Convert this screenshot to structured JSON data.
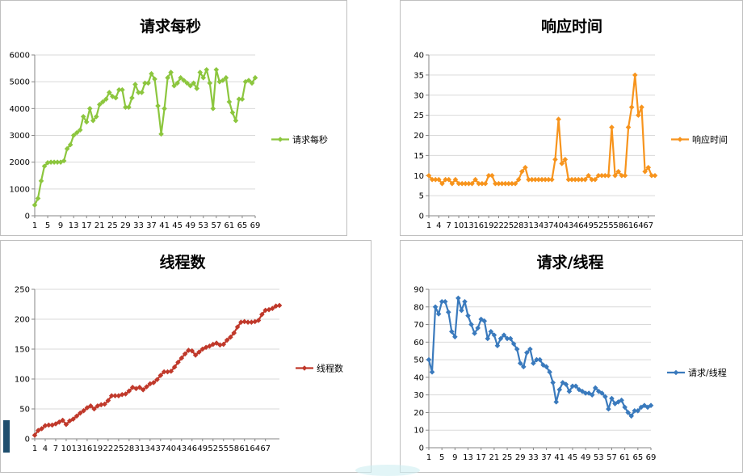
{
  "chart_data": [
    {
      "type": "line",
      "title": "请求每秒",
      "ylim": [
        0,
        6000
      ],
      "yticks": [
        0,
        1000,
        2000,
        3000,
        4000,
        5000,
        6000
      ],
      "xtick_labels": [
        "1",
        "5",
        "9",
        "13",
        "17",
        "21",
        "25",
        "29",
        "33",
        "37",
        "41",
        "45",
        "49",
        "53",
        "57",
        "61",
        "65",
        "69"
      ],
      "series": [
        {
          "name": "请求每秒",
          "color": "#8cc63e",
          "values": [
            400,
            650,
            1300,
            1850,
            1980,
            2000,
            2000,
            2000,
            2000,
            2050,
            2500,
            2650,
            3000,
            3100,
            3200,
            3700,
            3500,
            4000,
            3550,
            3700,
            4150,
            4250,
            4350,
            4600,
            4450,
            4400,
            4700,
            4700,
            4050,
            4050,
            4400,
            4900,
            4600,
            4600,
            4950,
            4950,
            5300,
            5100,
            4100,
            3050,
            4000,
            5150,
            5350,
            4850,
            4950,
            5150,
            5050,
            4950,
            4850,
            4950,
            4750,
            5350,
            5150,
            5450,
            4950,
            4000,
            5450,
            5000,
            5050,
            5150,
            4250,
            3850,
            3550,
            4350,
            4350,
            5000,
            5050,
            4950,
            5150
          ]
        }
      ]
    },
    {
      "type": "line",
      "title": "响应时间",
      "ylim": [
        0,
        40
      ],
      "yticks": [
        0,
        5,
        10,
        15,
        20,
        25,
        30,
        35,
        40
      ],
      "xtick_labels": [
        "1",
        "4",
        "7",
        "10",
        "13",
        "16",
        "19",
        "22",
        "25",
        "28",
        "31",
        "34",
        "37",
        "40",
        "43",
        "46",
        "49",
        "52",
        "55",
        "58",
        "61",
        "64",
        "67"
      ],
      "series": [
        {
          "name": "响应时间",
          "color": "#f7941d",
          "values": [
            10,
            9,
            9,
            9,
            8,
            9,
            9,
            8,
            9,
            8,
            8,
            8,
            8,
            8,
            9,
            8,
            8,
            8,
            10,
            10,
            8,
            8,
            8,
            8,
            8,
            8,
            8,
            9,
            11,
            12,
            9,
            9,
            9,
            9,
            9,
            9,
            9,
            9,
            14,
            24,
            13,
            14,
            9,
            9,
            9,
            9,
            9,
            9,
            10,
            9,
            9,
            10,
            10,
            10,
            10,
            22,
            10,
            11,
            10,
            10,
            22,
            27,
            35,
            25,
            27,
            11,
            12,
            10,
            10
          ]
        }
      ]
    },
    {
      "type": "line",
      "title": "线程数",
      "ylim": [
        0,
        250
      ],
      "yticks": [
        0,
        50,
        100,
        150,
        200,
        250
      ],
      "xtick_labels": [
        "1",
        "4",
        "7",
        "10",
        "13",
        "16",
        "19",
        "22",
        "25",
        "28",
        "31",
        "34",
        "37",
        "40",
        "43",
        "46",
        "49",
        "52",
        "55",
        "58",
        "61",
        "64",
        "67"
      ],
      "series": [
        {
          "name": "线程数",
          "color": "#c0392b",
          "values": [
            6,
            14,
            17,
            22,
            23,
            23,
            25,
            28,
            31,
            24,
            30,
            33,
            38,
            43,
            47,
            52,
            55,
            50,
            55,
            57,
            58,
            64,
            72,
            72,
            72,
            74,
            75,
            80,
            86,
            84,
            86,
            82,
            87,
            92,
            94,
            99,
            106,
            112,
            112,
            113,
            120,
            128,
            135,
            142,
            148,
            147,
            140,
            145,
            150,
            153,
            155,
            158,
            160,
            157,
            158,
            165,
            170,
            177,
            187,
            195,
            196,
            195,
            195,
            196,
            198,
            208,
            215,
            216,
            218,
            222,
            223
          ]
        }
      ]
    },
    {
      "type": "line",
      "title": "请求/线程",
      "ylim": [
        0,
        90
      ],
      "yticks": [
        0,
        10,
        20,
        30,
        40,
        50,
        60,
        70,
        80,
        90
      ],
      "xtick_labels": [
        "1",
        "5",
        "9",
        "13",
        "17",
        "21",
        "25",
        "29",
        "33",
        "37",
        "41",
        "45",
        "49",
        "53",
        "57",
        "61",
        "65",
        "69"
      ],
      "series": [
        {
          "name": "请求/线程",
          "color": "#3a7abd",
          "values": [
            50,
            43,
            80,
            76,
            83,
            83,
            77,
            66,
            63,
            85,
            78,
            83,
            75,
            70,
            65,
            68,
            73,
            72,
            62,
            66,
            64,
            58,
            62,
            64,
            62,
            62,
            59,
            56,
            48,
            46,
            54,
            56,
            48,
            50,
            50,
            47,
            46,
            43,
            37,
            26,
            33,
            37,
            36,
            32,
            35,
            35,
            33,
            32,
            31,
            31,
            30,
            34,
            32,
            31,
            29,
            22,
            28,
            25,
            26,
            27,
            23,
            20,
            18,
            21,
            21,
            23,
            24,
            23,
            24
          ]
        }
      ]
    }
  ]
}
